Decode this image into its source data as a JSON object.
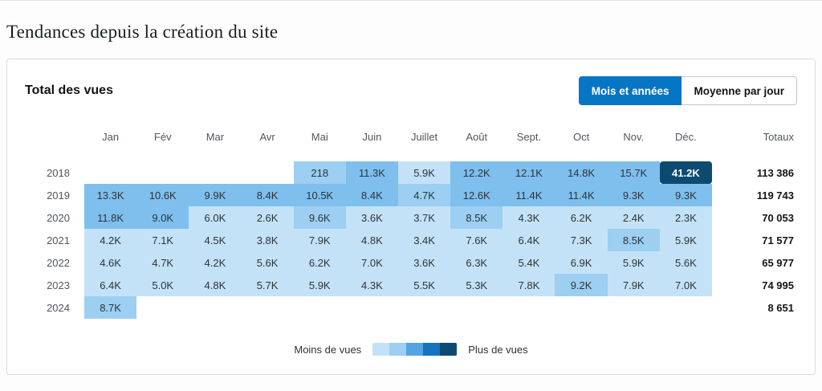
{
  "page": {
    "title": "Tendances depuis la création du site"
  },
  "card": {
    "title": "Total des vues",
    "view_toggle": [
      {
        "label": "Mois et années",
        "active": true
      },
      {
        "label": "Moyenne par jour",
        "active": false
      }
    ]
  },
  "colors": {
    "accent": "#0675c4"
  },
  "chart_data": {
    "type": "heatmap",
    "title": "Total des vues",
    "columns": [
      "Jan",
      "Fév",
      "Mar",
      "Avr",
      "Mai",
      "Juin",
      "Juillet",
      "Août",
      "Sept.",
      "Oct",
      "Nov.",
      "Déc."
    ],
    "totals_label": "Totaux",
    "rows": [
      {
        "year": "2018",
        "values": [
          null,
          null,
          null,
          null,
          "218",
          "11.3K",
          "5.9K",
          "12.2K",
          "12.1K",
          "14.8K",
          "15.7K",
          "41.2K"
        ],
        "levels": [
          0,
          0,
          0,
          0,
          2,
          3,
          1,
          3,
          3,
          3,
          3,
          5
        ],
        "total": "113 386"
      },
      {
        "year": "2019",
        "values": [
          "13.3K",
          "10.6K",
          "9.9K",
          "8.4K",
          "10.5K",
          "8.4K",
          "4.7K",
          "12.6K",
          "11.4K",
          "11.4K",
          "9.3K",
          "9.3K"
        ],
        "levels": [
          3,
          3,
          3,
          3,
          3,
          3,
          2,
          3,
          3,
          3,
          3,
          3
        ],
        "total": "119 743"
      },
      {
        "year": "2020",
        "values": [
          "11.8K",
          "9.0K",
          "6.0K",
          "2.6K",
          "9.6K",
          "3.6K",
          "3.7K",
          "8.5K",
          "4.3K",
          "6.2K",
          "2.4K",
          "2.3K"
        ],
        "levels": [
          3,
          3,
          1,
          1,
          2,
          1,
          1,
          2,
          1,
          1,
          1,
          1
        ],
        "total": "70 053"
      },
      {
        "year": "2021",
        "values": [
          "4.2K",
          "7.1K",
          "4.5K",
          "3.8K",
          "7.9K",
          "4.8K",
          "3.4K",
          "7.6K",
          "6.4K",
          "7.3K",
          "8.5K",
          "5.9K"
        ],
        "levels": [
          1,
          1,
          1,
          1,
          1,
          1,
          1,
          1,
          1,
          1,
          2,
          1
        ],
        "total": "71 577"
      },
      {
        "year": "2022",
        "values": [
          "4.6K",
          "4.7K",
          "4.2K",
          "5.6K",
          "6.2K",
          "7.0K",
          "3.6K",
          "6.3K",
          "5.4K",
          "6.9K",
          "5.9K",
          "5.6K"
        ],
        "levels": [
          1,
          1,
          1,
          1,
          1,
          1,
          1,
          1,
          1,
          1,
          1,
          1
        ],
        "total": "65 977"
      },
      {
        "year": "2023",
        "values": [
          "6.4K",
          "5.0K",
          "4.8K",
          "5.7K",
          "5.9K",
          "4.3K",
          "5.5K",
          "5.3K",
          "7.8K",
          "9.2K",
          "7.9K",
          "7.0K"
        ],
        "levels": [
          1,
          1,
          1,
          1,
          1,
          1,
          1,
          1,
          1,
          2,
          1,
          1
        ],
        "total": "74 995"
      },
      {
        "year": "2024",
        "values": [
          "8.7K",
          null,
          null,
          null,
          null,
          null,
          null,
          null,
          null,
          null,
          null,
          null
        ],
        "levels": [
          2,
          0,
          0,
          0,
          0,
          0,
          0,
          0,
          0,
          0,
          0,
          0
        ],
        "total": "8 651"
      }
    ],
    "level_colors": {
      "0": "transparent",
      "1": "#c4e2f7",
      "2": "#9ccff1",
      "3": "#7fbfed",
      "4": "#1573bf",
      "5": "#0c4a72"
    },
    "legend": {
      "less_label": "Moins de vues",
      "more_label": "Plus de vues",
      "colors": [
        "#c4e2f7",
        "#9ccff1",
        "#55a4e2",
        "#1573bf",
        "#0c4a72"
      ]
    }
  }
}
